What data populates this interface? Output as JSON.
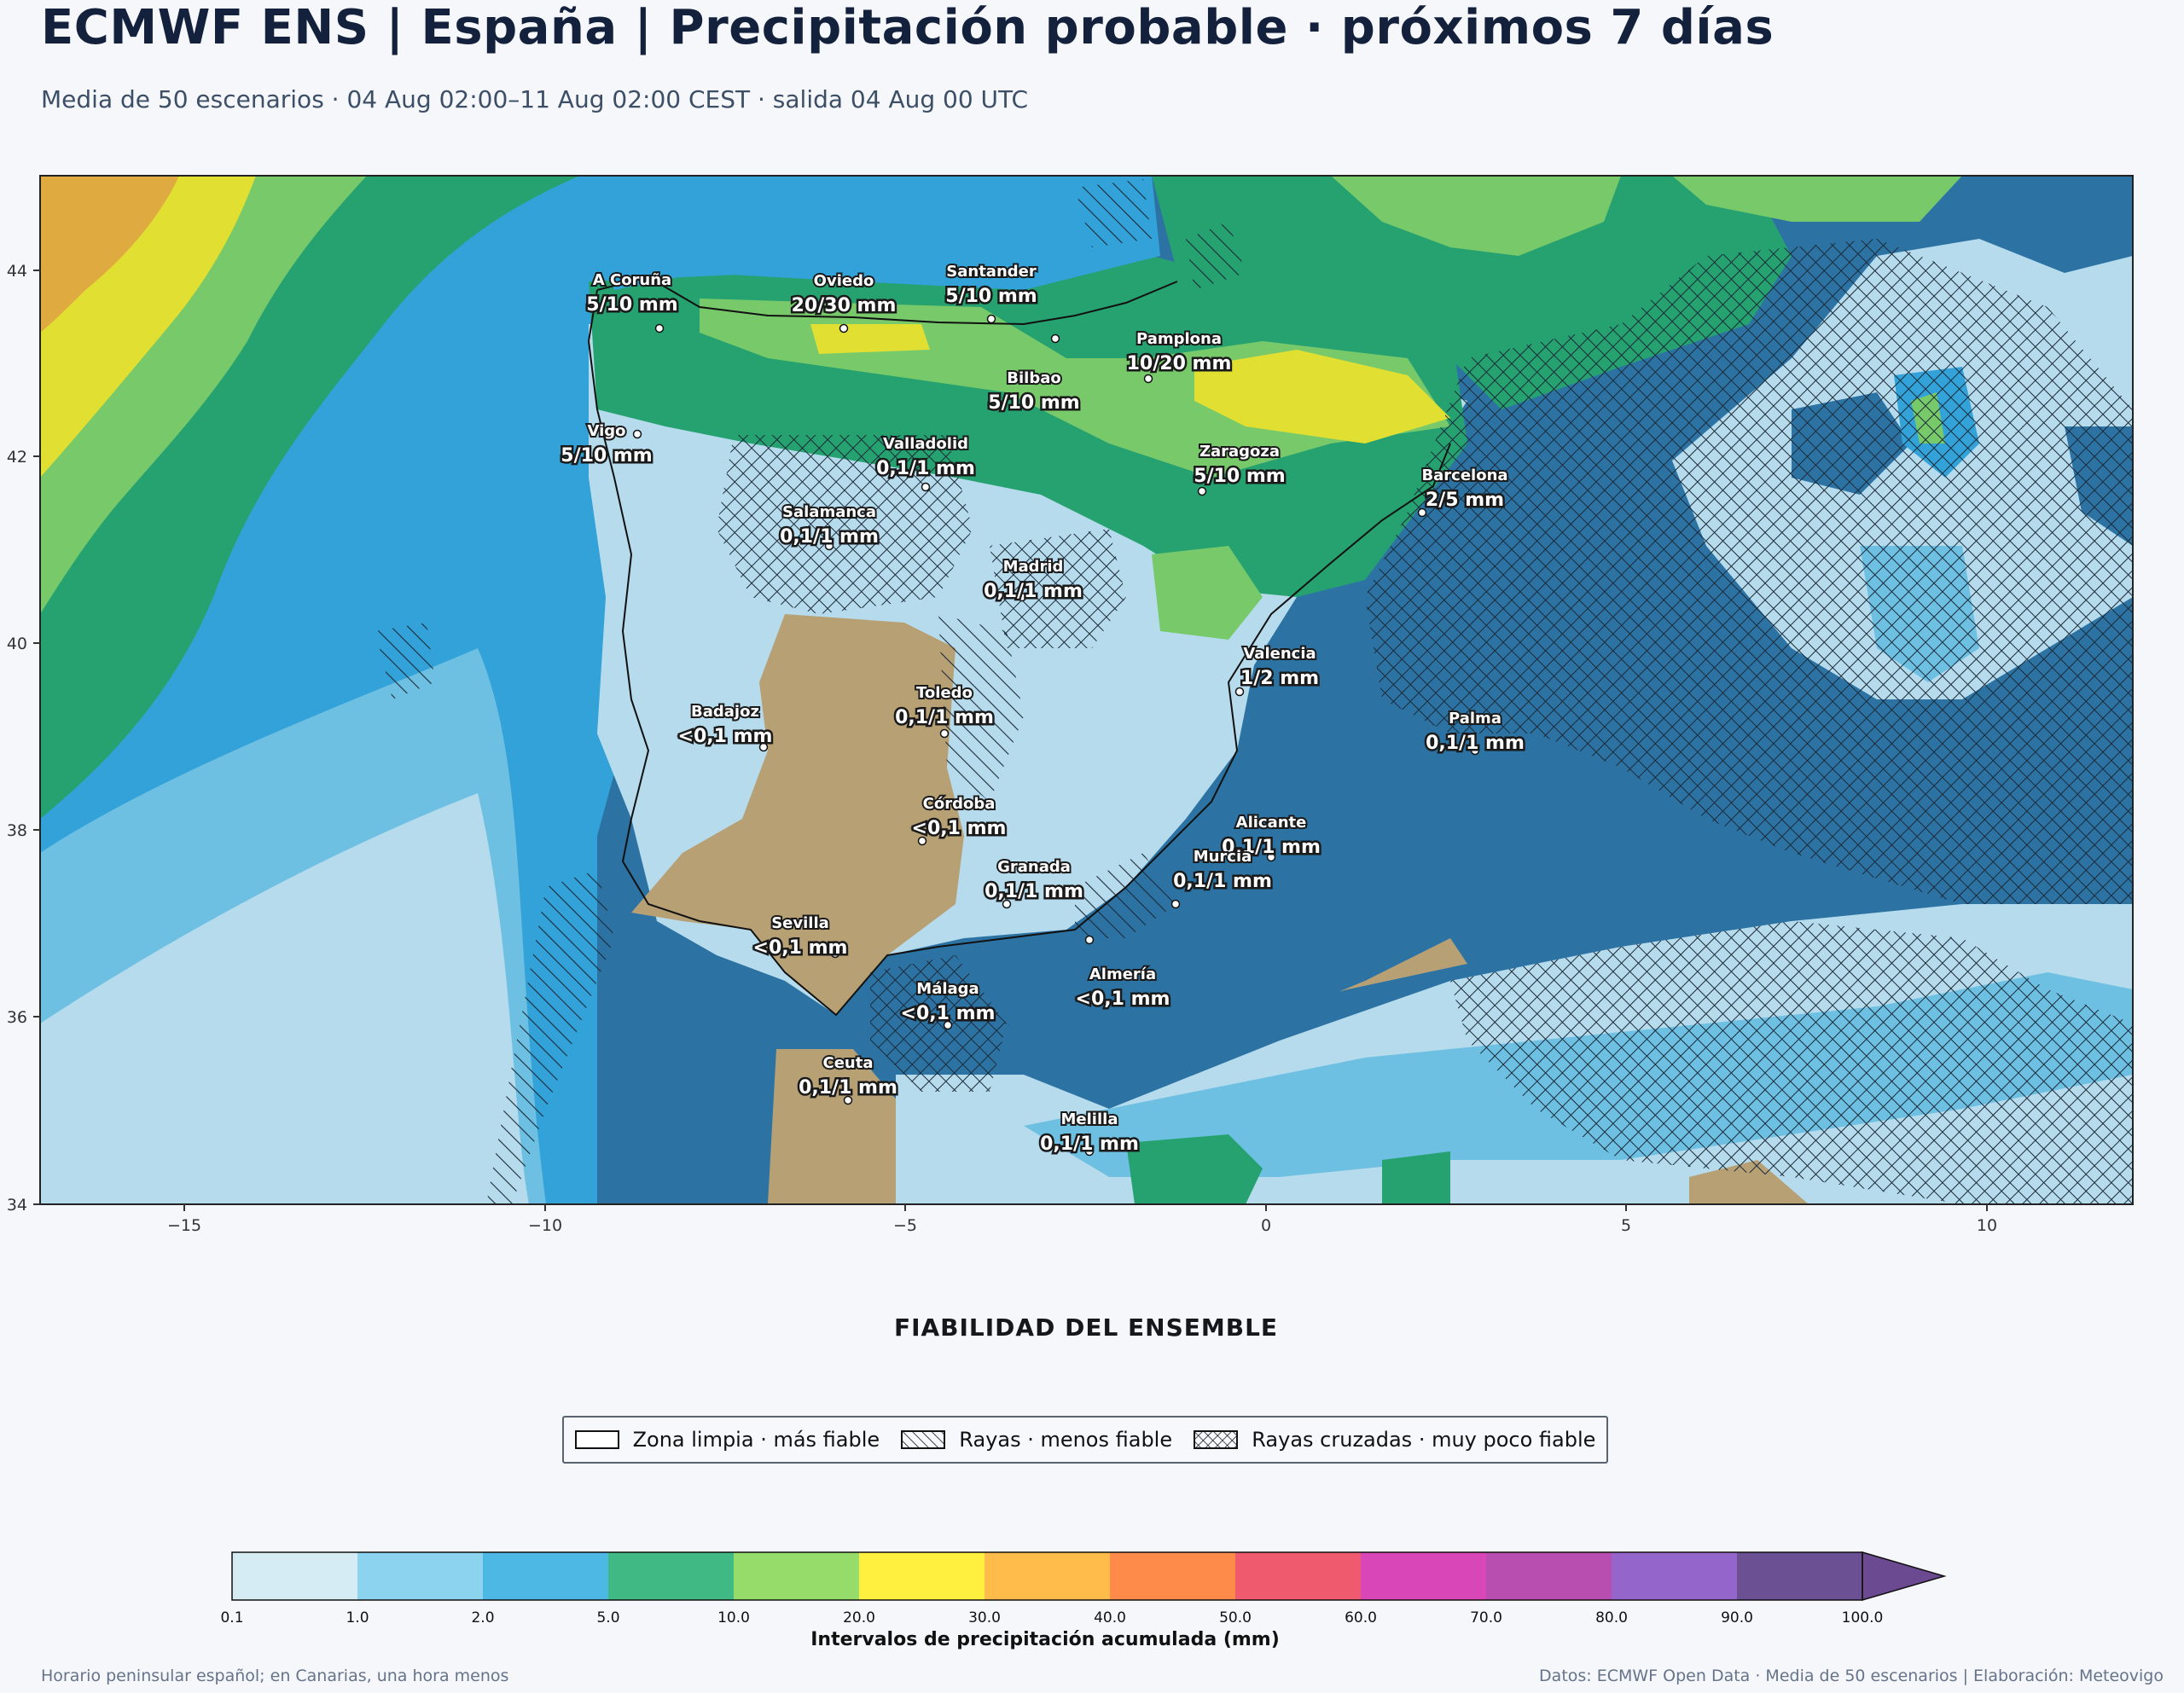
{
  "header": {
    "title": "ECMWF ENS | España | Precipitación probable · próximos 7 días",
    "subtitle": "Media de 50 escenarios · 04 Aug 02:00–11 Aug 02:00 CEST · salida 04 Aug 00 UTC"
  },
  "map": {
    "lon_ticks": [
      "−15",
      "−10",
      "−5",
      "0",
      "5",
      "10"
    ],
    "lat_ticks": [
      "44",
      "42",
      "40",
      "38",
      "36",
      "34"
    ],
    "colors": {
      "sea_dark": "#2c73a4",
      "sea_mid": "#33a2d8",
      "sea_light": "#6ec0e3",
      "pale": "#b6dbec",
      "green": "#26a270",
      "light_green": "#77c96a",
      "yellow": "#e2df33",
      "orange": "#dfab40",
      "dry": "#b8a075"
    },
    "cities": [
      {
        "name": "A Coruña",
        "value": "5/10 mm"
      },
      {
        "name": "Oviedo",
        "value": "20/30 mm"
      },
      {
        "name": "Santander",
        "value": "5/10 mm"
      },
      {
        "name": "Pamplona",
        "value": "10/20 mm"
      },
      {
        "name": "Bilbao",
        "value": "5/10 mm"
      },
      {
        "name": "Vigo",
        "value": "5/10 mm"
      },
      {
        "name": "Valladolid",
        "value": "0,1/1 mm"
      },
      {
        "name": "Zaragoza",
        "value": "5/10 mm"
      },
      {
        "name": "Barcelona",
        "value": "2/5 mm"
      },
      {
        "name": "Salamanca",
        "value": "0,1/1 mm"
      },
      {
        "name": "Madrid",
        "value": "0,1/1 mm"
      },
      {
        "name": "Valencia",
        "value": "1/2 mm"
      },
      {
        "name": "Toledo",
        "value": "0,1/1 mm"
      },
      {
        "name": "Badajoz",
        "value": "<0,1 mm"
      },
      {
        "name": "Palma",
        "value": "0,1/1 mm"
      },
      {
        "name": "Córdoba",
        "value": "<0,1 mm"
      },
      {
        "name": "Alicante",
        "value": "0,1/1 mm"
      },
      {
        "name": "Granada",
        "value": "0,1/1 mm"
      },
      {
        "name": "Murcia",
        "value": "0,1/1 mm"
      },
      {
        "name": "Sevilla",
        "value": "<0,1 mm"
      },
      {
        "name": "Almería",
        "value": "<0,1 mm"
      },
      {
        "name": "Málaga",
        "value": "<0,1 mm"
      },
      {
        "name": "Ceuta",
        "value": "0,1/1 mm"
      },
      {
        "name": "Melilla",
        "value": "0,1/1 mm"
      }
    ]
  },
  "reliability": {
    "title": "FIABILIDAD DEL ENSEMBLE",
    "items": [
      {
        "label": "Zona limpia · más fiable",
        "pattern": "none"
      },
      {
        "label": "Rayas · menos fiable",
        "pattern": "hatch"
      },
      {
        "label": "Rayas cruzadas · muy poco fiable",
        "pattern": "cross"
      }
    ]
  },
  "colorbar": {
    "label": "Intervalos de precipitación acumulada (mm)",
    "ticks": [
      "0.1",
      "1.0",
      "2.0",
      "5.0",
      "10.0",
      "20.0",
      "30.0",
      "40.0",
      "50.0",
      "60.0",
      "70.0",
      "80.0",
      "90.0",
      "100.0"
    ],
    "colors": [
      "#d6ecf5",
      "#8bd3ef",
      "#4db8e3",
      "#41b985",
      "#95dc6b",
      "#fff03f",
      "#ffbc4b",
      "#ff8b4b",
      "#ef5a6e",
      "#d946b8",
      "#b84eb0",
      "#9466cc",
      "#6b5193"
    ],
    "extend_color": "#6b4a91"
  },
  "footer": {
    "left": "Horario peninsular español; en Canarias, una hora menos",
    "right": "Datos: ECMWF Open Data · Media de 50 escenarios | Elaboración: Meteovigo"
  }
}
